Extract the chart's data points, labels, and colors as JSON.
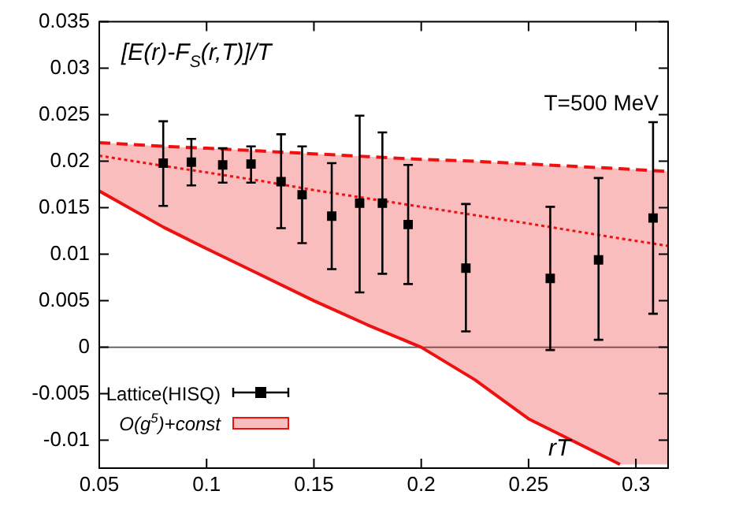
{
  "chart_data": {
    "type": "scatter",
    "ylabel": "[E(r)-F$_{S}$(r,T)]/T",
    "xlabel": "rT",
    "annotations": [
      "T=500 MeV"
    ],
    "xlim": [
      0.05,
      0.315
    ],
    "xticks": [
      0.05,
      0.1,
      0.15,
      0.2,
      0.25,
      0.3
    ],
    "ylim": [
      -0.013,
      0.035
    ],
    "yticks": [
      -0.01,
      -0.005,
      0,
      0.005,
      0.01,
      0.015,
      0.02,
      0.025,
      0.03,
      0.035
    ],
    "grid": false,
    "legend": "bottom left",
    "ref_lines": [
      {
        "axis": "y",
        "value": 0,
        "color": "#555555"
      }
    ],
    "series": [
      {
        "name": "Lattice(HISQ)",
        "marker": "square",
        "color": "#000000",
        "x": [
          0.0798,
          0.0929,
          0.1075,
          0.1207,
          0.1347,
          0.1445,
          0.1583,
          0.1713,
          0.1819,
          0.1939,
          0.2208,
          0.2601,
          0.2826,
          0.308
        ],
        "values": [
          0.0198,
          0.0199,
          0.0196,
          0.0197,
          0.0178,
          0.0164,
          0.0141,
          0.0155,
          0.0155,
          0.0132,
          0.0085,
          0.0074,
          0.0094,
          0.0139
        ],
        "errors": [
          [
            0.0152,
            0.0243
          ],
          [
            0.0174,
            0.0224
          ],
          [
            0.0177,
            0.0214
          ],
          [
            0.0177,
            0.0216
          ],
          [
            0.0128,
            0.0229
          ],
          [
            0.0112,
            0.0216
          ],
          [
            0.0084,
            0.0198
          ],
          [
            0.0059,
            0.0249
          ],
          [
            0.0079,
            0.0231
          ],
          [
            0.0068,
            0.0196
          ],
          [
            0.0017,
            0.0154
          ],
          [
            -0.0003,
            0.0151
          ],
          [
            0.0008,
            0.0182
          ],
          [
            0.0036,
            0.0242
          ]
        ]
      },
      {
        "type": "line",
        "line_style": "dashed",
        "color": "#ee1111",
        "x": [
          0.05,
          0.08,
          0.1,
          0.125,
          0.15,
          0.175,
          0.2,
          0.225,
          0.25,
          0.2926,
          0.315
        ],
        "values": [
          0.022,
          0.0216,
          0.0214,
          0.0211,
          0.0208,
          0.0205,
          0.0202,
          0.02,
          0.0197,
          0.0192,
          0.0189
        ]
      },
      {
        "type": "line",
        "line_style": "solid",
        "color": "#ee1111",
        "x": [
          0.05,
          0.08,
          0.1,
          0.125,
          0.15,
          0.175,
          0.2,
          0.225,
          0.25,
          0.2926
        ],
        "values": [
          0.0168,
          0.0129,
          0.0106,
          0.0078,
          0.005,
          0.0024,
          0.0,
          -0.0035,
          -0.0077,
          -0.0126
        ]
      },
      {
        "name": "O(g$^{5}$)+const",
        "type": "line",
        "line_style": "dotted",
        "color": "#ee1111",
        "x": [
          0.05,
          0.08,
          0.1,
          0.125,
          0.15,
          0.175,
          0.2,
          0.225,
          0.25,
          0.2926,
          0.315
        ],
        "values": [
          0.0206,
          0.0195,
          0.0188,
          0.0179,
          0.0169,
          0.016,
          0.0151,
          0.0142,
          0.0133,
          0.0117,
          0.0109
        ],
        "upper": [
          0.022,
          0.0216,
          0.0214,
          0.0211,
          0.0208,
          0.0205,
          0.0202,
          0.02,
          0.0197,
          0.0192,
          0.0189
        ],
        "lower": [
          0.0168,
          0.0129,
          0.0106,
          0.0078,
          0.005,
          0.0024,
          0.0,
          -0.0035,
          -0.0077,
          -0.0126,
          -0.0126
        ]
      }
    ]
  }
}
